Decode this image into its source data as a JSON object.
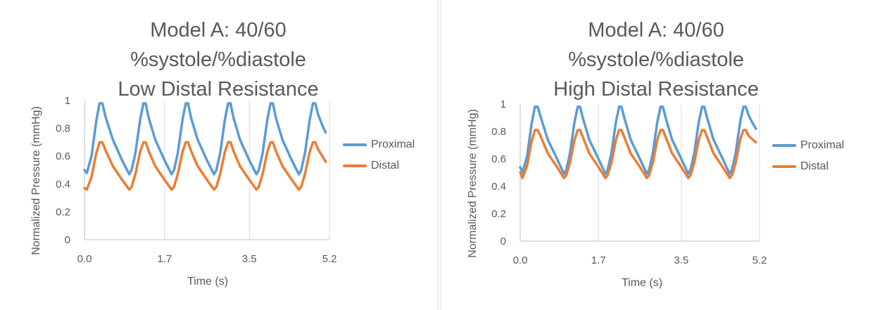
{
  "chart_data": [
    {
      "type": "line",
      "title": "Model A: 40/60 %systole/%diastole Low Distal Resistance",
      "title_lines": [
        "Model A: 40/60",
        "%systole/%diastole",
        "Low Distal Resistance"
      ],
      "xlabel": "Time (s)",
      "ylabel": "Normalized Pressure (mmHg)",
      "xlim": [
        0,
        5.2
      ],
      "ylim": [
        0,
        1
      ],
      "xticks": [
        0.0,
        1.7,
        3.5,
        5.2
      ],
      "xtick_labels": [
        "0.0",
        "1.7",
        "3.5",
        "5.2"
      ],
      "yticks": [
        0,
        0.2,
        0.4,
        0.6,
        0.8,
        1
      ],
      "ytick_labels": [
        "0",
        "0.2",
        "0.4",
        "0.6",
        "0.8",
        "1"
      ],
      "grid": "vertical",
      "legend_position": "right",
      "series": [
        {
          "name": "Proximal",
          "color": "#5B9BD5",
          "x": [
            0,
            0.05,
            0.15,
            0.25,
            0.32,
            0.38,
            0.45,
            0.6,
            0.8,
            0.95,
            1.0,
            1.08,
            1.18,
            1.25,
            1.3,
            1.36,
            1.5,
            1.7,
            1.85,
            1.9,
            1.98,
            2.08,
            2.15,
            2.2,
            2.26,
            2.4,
            2.6,
            2.75,
            2.8,
            2.88,
            2.98,
            3.05,
            3.1,
            3.16,
            3.3,
            3.5,
            3.65,
            3.7,
            3.78,
            3.88,
            3.95,
            4.0,
            4.06,
            4.2,
            4.4,
            4.55,
            4.6,
            4.68,
            4.78,
            4.85,
            4.9,
            4.96,
            5.05,
            5.12
          ],
          "values": [
            0.5,
            0.48,
            0.6,
            0.85,
            0.98,
            0.98,
            0.88,
            0.72,
            0.57,
            0.47,
            0.5,
            0.62,
            0.86,
            0.98,
            0.98,
            0.88,
            0.72,
            0.57,
            0.47,
            0.5,
            0.62,
            0.86,
            0.98,
            0.98,
            0.88,
            0.72,
            0.57,
            0.47,
            0.5,
            0.62,
            0.86,
            0.98,
            0.98,
            0.88,
            0.72,
            0.57,
            0.47,
            0.5,
            0.62,
            0.86,
            0.98,
            0.98,
            0.88,
            0.72,
            0.57,
            0.47,
            0.5,
            0.62,
            0.86,
            0.98,
            0.98,
            0.9,
            0.82,
            0.77
          ]
        },
        {
          "name": "Distal",
          "color": "#ED7D31",
          "x": [
            0,
            0.05,
            0.15,
            0.25,
            0.32,
            0.38,
            0.45,
            0.6,
            0.8,
            0.95,
            1.0,
            1.08,
            1.18,
            1.25,
            1.3,
            1.36,
            1.5,
            1.7,
            1.85,
            1.9,
            1.98,
            2.08,
            2.15,
            2.2,
            2.26,
            2.4,
            2.6,
            2.75,
            2.8,
            2.88,
            2.98,
            3.05,
            3.1,
            3.16,
            3.3,
            3.5,
            3.65,
            3.7,
            3.78,
            3.88,
            3.95,
            4.0,
            4.06,
            4.2,
            4.4,
            4.55,
            4.6,
            4.68,
            4.78,
            4.85,
            4.9,
            4.96,
            5.05,
            5.12
          ],
          "values": [
            0.37,
            0.36,
            0.45,
            0.62,
            0.7,
            0.7,
            0.64,
            0.53,
            0.43,
            0.36,
            0.38,
            0.47,
            0.63,
            0.7,
            0.7,
            0.64,
            0.53,
            0.43,
            0.36,
            0.38,
            0.47,
            0.63,
            0.7,
            0.7,
            0.64,
            0.53,
            0.43,
            0.36,
            0.38,
            0.47,
            0.63,
            0.7,
            0.7,
            0.64,
            0.53,
            0.43,
            0.36,
            0.38,
            0.47,
            0.63,
            0.7,
            0.7,
            0.64,
            0.53,
            0.43,
            0.36,
            0.38,
            0.47,
            0.63,
            0.7,
            0.7,
            0.65,
            0.6,
            0.56
          ]
        }
      ]
    },
    {
      "type": "line",
      "title": "Model A: 40/60 %systole/%diastole High Distal Resistance",
      "title_lines": [
        "Model A: 40/60",
        "%systole/%diastole",
        "High Distal Resistance"
      ],
      "xlabel": "Time (s)",
      "ylabel": "Normalized Pressure (mmHg)",
      "xlim": [
        0,
        5.2
      ],
      "ylim": [
        0,
        1
      ],
      "xticks": [
        0.0,
        1.7,
        3.5,
        5.2
      ],
      "xtick_labels": [
        "0.0",
        "1.7",
        "3.5",
        "5.2"
      ],
      "yticks": [
        0,
        0.2,
        0.4,
        0.6,
        0.8,
        1
      ],
      "ytick_labels": [
        "0",
        "0.2",
        "0.4",
        "0.6",
        "0.8",
        "1"
      ],
      "grid": "vertical",
      "legend_position": "right",
      "series": [
        {
          "name": "Proximal",
          "color": "#5B9BD5",
          "x": [
            0,
            0.05,
            0.15,
            0.25,
            0.32,
            0.38,
            0.45,
            0.6,
            0.8,
            0.95,
            1.0,
            1.08,
            1.18,
            1.25,
            1.3,
            1.36,
            1.5,
            1.7,
            1.85,
            1.9,
            1.98,
            2.08,
            2.15,
            2.2,
            2.26,
            2.4,
            2.6,
            2.75,
            2.8,
            2.88,
            2.98,
            3.05,
            3.1,
            3.16,
            3.3,
            3.5,
            3.65,
            3.7,
            3.78,
            3.88,
            3.95,
            4.0,
            4.06,
            4.2,
            4.4,
            4.55,
            4.6,
            4.68,
            4.78,
            4.85,
            4.9,
            4.96,
            5.05,
            5.12
          ],
          "values": [
            0.54,
            0.5,
            0.62,
            0.86,
            0.98,
            0.98,
            0.9,
            0.74,
            0.6,
            0.49,
            0.52,
            0.64,
            0.87,
            0.98,
            0.98,
            0.9,
            0.74,
            0.6,
            0.49,
            0.52,
            0.64,
            0.87,
            0.98,
            0.98,
            0.9,
            0.74,
            0.6,
            0.49,
            0.52,
            0.64,
            0.87,
            0.98,
            0.98,
            0.9,
            0.74,
            0.6,
            0.49,
            0.52,
            0.64,
            0.87,
            0.98,
            0.98,
            0.9,
            0.74,
            0.6,
            0.49,
            0.52,
            0.64,
            0.87,
            0.98,
            0.98,
            0.92,
            0.86,
            0.82
          ]
        },
        {
          "name": "Distal",
          "color": "#ED7D31",
          "x": [
            0,
            0.05,
            0.15,
            0.25,
            0.32,
            0.38,
            0.45,
            0.6,
            0.8,
            0.95,
            1.0,
            1.08,
            1.18,
            1.25,
            1.3,
            1.36,
            1.5,
            1.7,
            1.85,
            1.9,
            1.98,
            2.08,
            2.15,
            2.2,
            2.26,
            2.4,
            2.6,
            2.75,
            2.8,
            2.88,
            2.98,
            3.05,
            3.1,
            3.16,
            3.3,
            3.5,
            3.65,
            3.7,
            3.78,
            3.88,
            3.95,
            4.0,
            4.06,
            4.2,
            4.4,
            4.55,
            4.6,
            4.68,
            4.78,
            4.85,
            4.9,
            4.96,
            5.05,
            5.12
          ],
          "values": [
            0.5,
            0.46,
            0.55,
            0.73,
            0.81,
            0.81,
            0.76,
            0.64,
            0.54,
            0.46,
            0.48,
            0.57,
            0.74,
            0.81,
            0.81,
            0.76,
            0.64,
            0.54,
            0.46,
            0.48,
            0.57,
            0.74,
            0.81,
            0.81,
            0.76,
            0.64,
            0.54,
            0.46,
            0.48,
            0.57,
            0.74,
            0.81,
            0.81,
            0.76,
            0.64,
            0.54,
            0.46,
            0.48,
            0.57,
            0.74,
            0.81,
            0.81,
            0.76,
            0.64,
            0.54,
            0.46,
            0.48,
            0.57,
            0.74,
            0.81,
            0.81,
            0.77,
            0.74,
            0.72
          ]
        }
      ]
    }
  ]
}
